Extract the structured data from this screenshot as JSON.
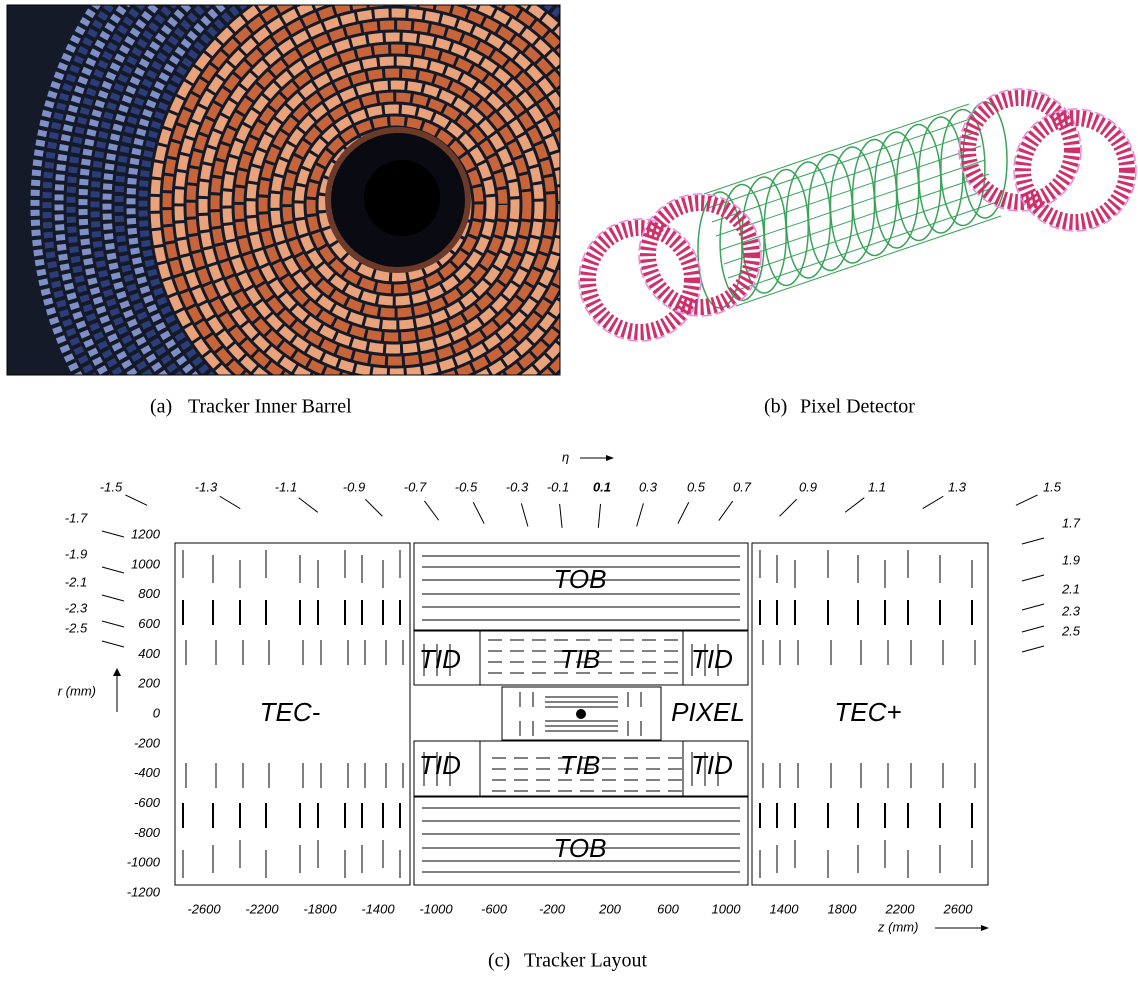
{
  "figures": [
    {
      "label": "(a)",
      "caption": "Tracker Inner Barrel"
    },
    {
      "label": "(b)",
      "caption": "Pixel Detector"
    },
    {
      "label": "(c)",
      "caption": "Tracker Layout"
    }
  ],
  "layout": {
    "eta_label": "η",
    "eta_top": [
      "-1.5",
      "-1.3",
      "-1.1",
      "-0.9",
      "-0.7",
      "-0.5",
      "-0.3",
      "-0.1",
      "0.1",
      "0.3",
      "0.5",
      "0.7",
      "0.9",
      "1.1",
      "1.3",
      "1.5"
    ],
    "eta_left": [
      "-1.7",
      "-1.9",
      "-2.1",
      "-2.3",
      "-2.5"
    ],
    "eta_right": [
      "1.7",
      "1.9",
      "2.1",
      "2.3",
      "2.5"
    ],
    "r_label": "r (mm)",
    "r_ticks": [
      1200,
      1000,
      800,
      600,
      400,
      200,
      0,
      -200,
      -400,
      -600,
      -800,
      -1000,
      -1200
    ],
    "z_label": "z (mm)",
    "z_ticks": [
      -2600,
      -2200,
      -1800,
      -1400,
      -1000,
      -600,
      -200,
      200,
      600,
      1000,
      1400,
      1800,
      2200,
      2600
    ],
    "regions": [
      "TEC-",
      "TOB",
      "TID",
      "TIB",
      "TID",
      "PIXEL",
      "TID",
      "TIB",
      "TID",
      "TOB",
      "TEC+"
    ]
  }
}
